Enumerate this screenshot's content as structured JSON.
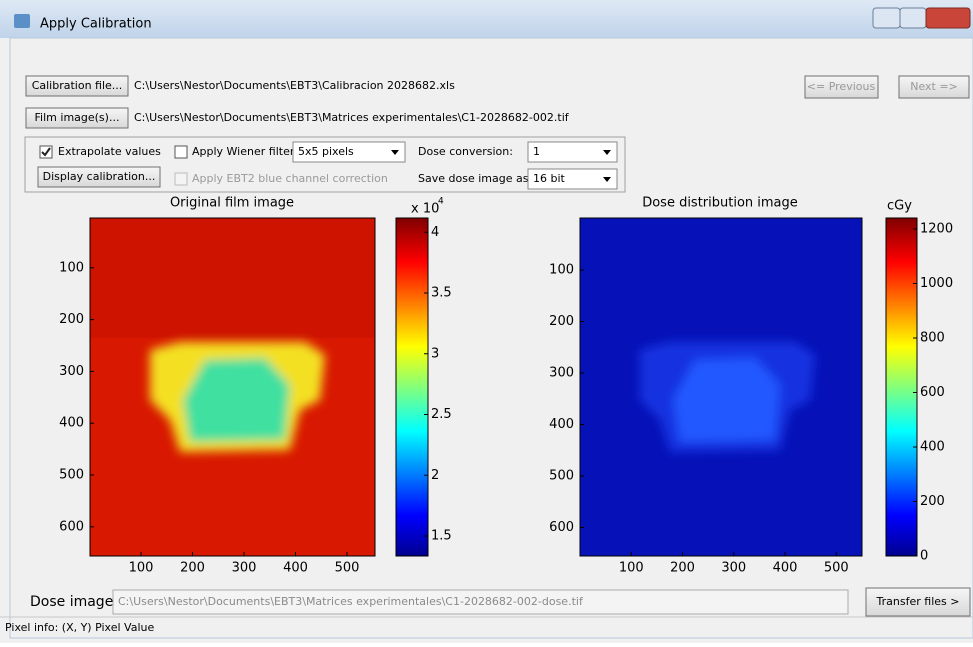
{
  "window": {
    "title": "Apply Calibration"
  },
  "controls": {
    "calibration_button": "Calibration file...",
    "calibration_path": "C:\\Users\\Nestor\\Documents\\EBT3\\Calibracion 2028682.xls",
    "film_button": "Film image(s)...",
    "film_path": "C:\\Users\\Nestor\\Documents\\EBT3\\Matrices experimentales\\C1-2028682-002.tif",
    "previous_button": "<= Previous",
    "next_button": "Next =>",
    "extrapolate_checkbox": "Extrapolate values",
    "wiener_checkbox": "Apply Wiener filter",
    "wiener_size": "5x5 pixels",
    "display_calibration_button": "Display calibration...",
    "ebt2_checkbox": "Apply EBT2 blue channel correction",
    "dose_conversion_label": "Dose conversion:",
    "dose_conversion_value": "1",
    "save_label": "Save dose image as:",
    "save_value": "16 bit"
  },
  "left_plot": {
    "title": "Original film image",
    "xticks": [
      100,
      200,
      300,
      400,
      500
    ],
    "yticks": [
      100,
      200,
      300,
      400,
      500,
      600
    ],
    "colorbar_multiplier": "x 10",
    "colorbar_exponent": "4",
    "colorbar_ticks": [
      1.5,
      2,
      2.5,
      3,
      3.5,
      4
    ]
  },
  "right_plot": {
    "title": "Dose distribution image",
    "xticks": [
      100,
      200,
      300,
      400,
      500
    ],
    "yticks": [
      100,
      200,
      300,
      400,
      500,
      600
    ],
    "colorbar_unit": "cGy",
    "colorbar_ticks": [
      0,
      200,
      400,
      600,
      800,
      1000,
      1200
    ]
  },
  "bottom": {
    "dose_image_label": "Dose image:",
    "dose_image_path": "C:\\Users\\Nestor\\Documents\\EBT3\\Matrices experimentales\\C1-2028682-002-dose.tif",
    "transfer_button": "Transfer files >",
    "status": "Pixel info: (X, Y)  Pixel Value"
  }
}
